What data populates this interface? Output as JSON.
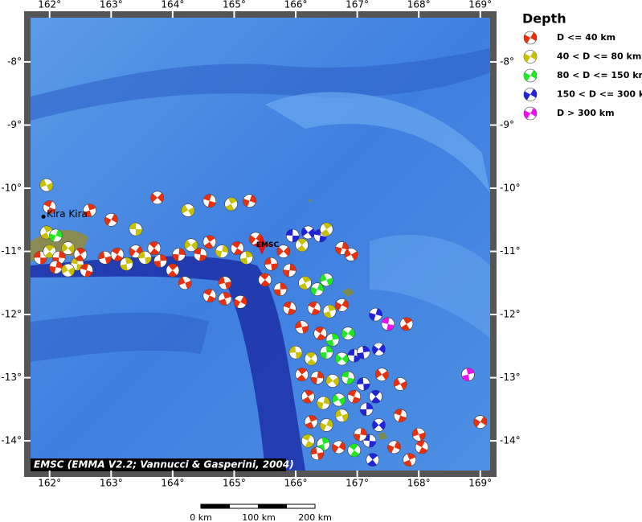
{
  "map": {
    "lon_ticks": [
      {
        "value": 162,
        "label": "162°"
      },
      {
        "value": 163,
        "label": "163°"
      },
      {
        "value": 164,
        "label": "164°"
      },
      {
        "value": 165,
        "label": "165°"
      },
      {
        "value": 166,
        "label": "166°"
      },
      {
        "value": 167,
        "label": "167°"
      },
      {
        "value": 168,
        "label": "168°"
      },
      {
        "value": 169,
        "label": "169°"
      }
    ],
    "lat_ticks": [
      {
        "value": -8,
        "label": "-8°"
      },
      {
        "value": -9,
        "label": "-9°"
      },
      {
        "value": -10,
        "label": "-10°"
      },
      {
        "value": -11,
        "label": "-11°"
      },
      {
        "value": -12,
        "label": "-12°"
      },
      {
        "value": -13,
        "label": "-13°"
      },
      {
        "value": -14,
        "label": "-14°"
      }
    ],
    "extent": {
      "lon": [
        161.69,
        169.16
      ],
      "lat": [
        -7.3,
        -14.47
      ]
    },
    "places": [
      {
        "name": "Kira Kira",
        "lon": 161.9,
        "lat": -10.45
      }
    ],
    "agency_marker": {
      "label": "EMSC",
      "lon": 165.45,
      "lat": -10.9
    },
    "credit": "EMSC (EMMA V2.2; Vannucci & Gasperini, 2004)",
    "scale_bar": {
      "labels": [
        "0 km",
        "100 km",
        "200 km"
      ]
    },
    "events": [
      [
        161.85,
        -11.1,
        0
      ],
      [
        162.0,
        -11.0,
        1
      ],
      [
        162.15,
        -11.1,
        0
      ],
      [
        162.3,
        -10.95,
        1
      ],
      [
        162.45,
        -11.2,
        1
      ],
      [
        162.5,
        -11.05,
        0
      ],
      [
        162.1,
        -11.25,
        0
      ],
      [
        162.3,
        -11.3,
        1
      ],
      [
        162.6,
        -11.3,
        0
      ],
      [
        161.95,
        -10.7,
        1
      ],
      [
        162.1,
        -10.75,
        2
      ],
      [
        161.95,
        -9.95,
        1
      ],
      [
        162.0,
        -10.3,
        0
      ],
      [
        162.65,
        -10.35,
        0
      ],
      [
        163.0,
        -10.5,
        0
      ],
      [
        162.9,
        -11.1,
        0
      ],
      [
        163.1,
        -11.05,
        0
      ],
      [
        163.25,
        -11.2,
        1
      ],
      [
        163.4,
        -11.0,
        0
      ],
      [
        163.55,
        -11.1,
        1
      ],
      [
        163.7,
        -10.95,
        0
      ],
      [
        163.8,
        -11.15,
        0
      ],
      [
        163.75,
        -10.15,
        0
      ],
      [
        163.4,
        -10.65,
        1
      ],
      [
        164.0,
        -11.3,
        0
      ],
      [
        164.1,
        -11.05,
        0
      ],
      [
        164.3,
        -10.9,
        1
      ],
      [
        164.45,
        -11.05,
        0
      ],
      [
        164.6,
        -10.85,
        0
      ],
      [
        164.8,
        -11.0,
        1
      ],
      [
        164.25,
        -10.35,
        1
      ],
      [
        164.6,
        -10.2,
        0
      ],
      [
        164.95,
        -10.25,
        1
      ],
      [
        165.25,
        -10.2,
        0
      ],
      [
        164.2,
        -11.5,
        0
      ],
      [
        164.6,
        -11.7,
        0
      ],
      [
        164.85,
        -11.75,
        0
      ],
      [
        165.1,
        -11.8,
        0
      ],
      [
        164.85,
        -11.5,
        0
      ],
      [
        165.05,
        -10.95,
        0
      ],
      [
        165.2,
        -11.1,
        1
      ],
      [
        165.35,
        -10.8,
        0
      ],
      [
        165.6,
        -11.2,
        0
      ],
      [
        165.5,
        -11.45,
        0
      ],
      [
        165.75,
        -11.6,
        0
      ],
      [
        165.8,
        -11.0,
        0
      ],
      [
        165.95,
        -10.75,
        3
      ],
      [
        166.1,
        -10.9,
        1
      ],
      [
        165.9,
        -11.3,
        0
      ],
      [
        166.2,
        -10.7,
        3
      ],
      [
        166.4,
        -10.75,
        3
      ],
      [
        166.5,
        -10.65,
        1
      ],
      [
        166.75,
        -10.95,
        0
      ],
      [
        166.9,
        -11.05,
        0
      ],
      [
        165.9,
        -11.9,
        0
      ],
      [
        166.15,
        -11.5,
        1
      ],
      [
        166.35,
        -11.6,
        2
      ],
      [
        166.5,
        -11.45,
        2
      ],
      [
        166.3,
        -11.9,
        0
      ],
      [
        166.55,
        -11.95,
        1
      ],
      [
        166.75,
        -11.85,
        0
      ],
      [
        166.1,
        -12.2,
        0
      ],
      [
        166.4,
        -12.3,
        0
      ],
      [
        166.6,
        -12.4,
        2
      ],
      [
        166.85,
        -12.3,
        2
      ],
      [
        166.0,
        -12.6,
        1
      ],
      [
        166.25,
        -12.7,
        1
      ],
      [
        166.5,
        -12.6,
        2
      ],
      [
        166.75,
        -12.7,
        2
      ],
      [
        166.95,
        -12.65,
        3
      ],
      [
        166.1,
        -12.95,
        0
      ],
      [
        166.35,
        -13.0,
        0
      ],
      [
        166.6,
        -13.05,
        1
      ],
      [
        166.85,
        -13.0,
        2
      ],
      [
        166.2,
        -13.3,
        0
      ],
      [
        166.45,
        -13.4,
        1
      ],
      [
        166.7,
        -13.35,
        2
      ],
      [
        166.95,
        -13.3,
        0
      ],
      [
        166.25,
        -13.7,
        0
      ],
      [
        166.5,
        -13.75,
        1
      ],
      [
        166.75,
        -13.6,
        1
      ],
      [
        166.2,
        -14.0,
        1
      ],
      [
        166.45,
        -14.05,
        2
      ],
      [
        166.7,
        -14.1,
        0
      ],
      [
        166.35,
        -14.2,
        0
      ],
      [
        166.95,
        -14.15,
        2
      ],
      [
        167.1,
        -12.6,
        3
      ],
      [
        167.35,
        -12.55,
        3
      ],
      [
        167.1,
        -13.1,
        3
      ],
      [
        167.3,
        -13.3,
        3
      ],
      [
        167.15,
        -13.5,
        3
      ],
      [
        167.35,
        -13.75,
        3
      ],
      [
        167.2,
        -14.0,
        3
      ],
      [
        167.25,
        -14.3,
        3
      ],
      [
        167.05,
        -13.9,
        0
      ],
      [
        167.4,
        -12.95,
        0
      ],
      [
        167.5,
        -12.15,
        4
      ],
      [
        167.8,
        -12.15,
        0
      ],
      [
        167.3,
        -12.0,
        3
      ],
      [
        167.7,
        -13.1,
        0
      ],
      [
        167.7,
        -13.6,
        0
      ],
      [
        167.85,
        -14.3,
        0
      ],
      [
        167.6,
        -14.1,
        0
      ],
      [
        168.0,
        -13.9,
        0
      ],
      [
        168.05,
        -14.1,
        0
      ],
      [
        168.8,
        -12.95,
        4
      ],
      [
        169.0,
        -13.7,
        0
      ]
    ]
  },
  "legend": {
    "title": "Depth",
    "items": [
      {
        "label": "D <= 40 km",
        "color": "#e8300c"
      },
      {
        "label": "40 < D <= 80 km",
        "color": "#c8c000"
      },
      {
        "label": "80 < D <= 150 km",
        "color": "#22e822"
      },
      {
        "label": "150 < D <= 300 km",
        "color": "#2222d8"
      },
      {
        "label": "D > 300 km",
        "color": "#ee11ee"
      }
    ]
  }
}
